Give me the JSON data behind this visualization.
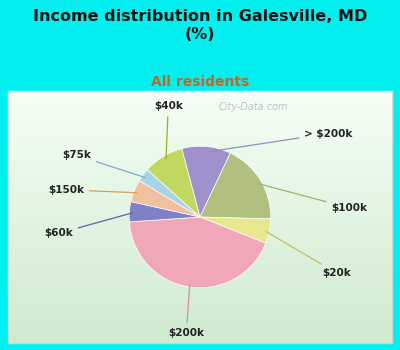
{
  "title": "Income distribution in Galesville, MD\n(%)",
  "subtitle": "All residents",
  "title_color": "#111111",
  "subtitle_color": "#c06820",
  "background_color": "#00f0f0",
  "labels": [
    "> $200k",
    "$100k",
    "$20k",
    "$200k",
    "$60k",
    "$150k",
    "$75k",
    "$40k"
  ],
  "values": [
    11.0,
    18.0,
    5.5,
    42.0,
    4.5,
    5.0,
    3.0,
    9.0
  ],
  "colors": [
    "#a090cc",
    "#b0c080",
    "#e8e890",
    "#f0a8b8",
    "#8080c8",
    "#f0c0a0",
    "#a8d4e8",
    "#c0d860"
  ],
  "label_line_colors": [
    "#9090bb",
    "#a0b070",
    "#c0c060",
    "#d090a0",
    "#6060aa",
    "#d0a060",
    "#80aad0",
    "#90b030"
  ],
  "watermark": "City-Data.com"
}
